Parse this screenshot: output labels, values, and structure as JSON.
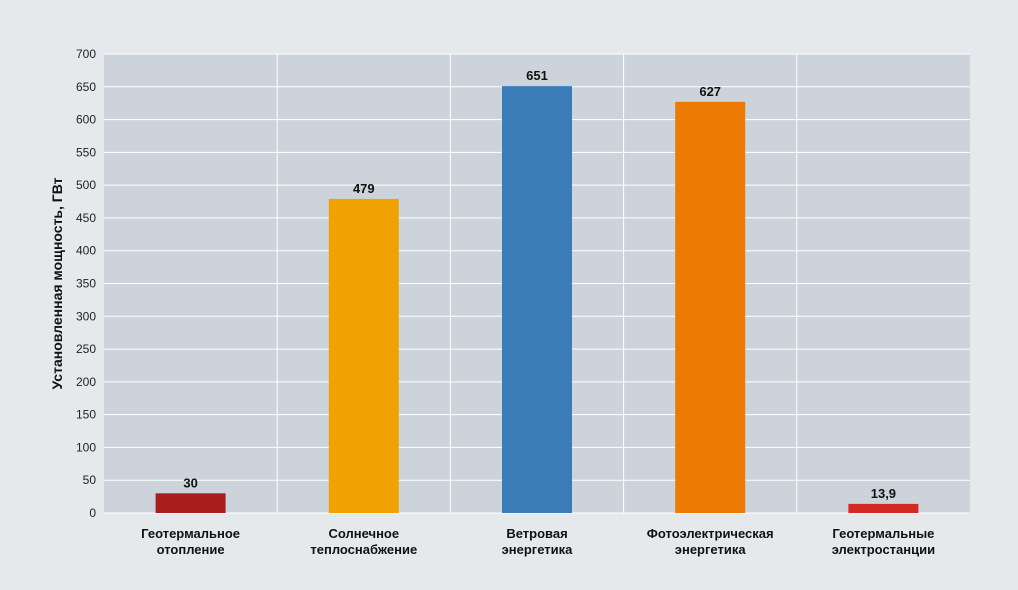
{
  "chart_data": {
    "type": "bar",
    "title": "",
    "xlabel": "",
    "ylabel": "Установленная мощность, ГВт",
    "ylim": [
      0,
      700
    ],
    "yticks": [
      0,
      50,
      100,
      150,
      200,
      250,
      300,
      350,
      400,
      450,
      500,
      550,
      600,
      650,
      700
    ],
    "grid": true,
    "legend": "none",
    "categories": [
      [
        "Геотермальное",
        "отопление"
      ],
      [
        "Солнечное",
        "теплоснабжение"
      ],
      [
        "Ветровая",
        "энергетика"
      ],
      [
        "Фотоэлектрическая",
        "энергетика"
      ],
      [
        "Геотермальные",
        "электростанции"
      ]
    ],
    "values": [
      30,
      479,
      651,
      627,
      13.9
    ],
    "value_labels": [
      "30",
      "479",
      "651",
      "627",
      "13,9"
    ],
    "colors": [
      "#a91d1d",
      "#f0a202",
      "#3a7cb8",
      "#ec7a04",
      "#d22a22"
    ],
    "plot_background": "#cdd3da",
    "grid_color": "#ffffff"
  }
}
